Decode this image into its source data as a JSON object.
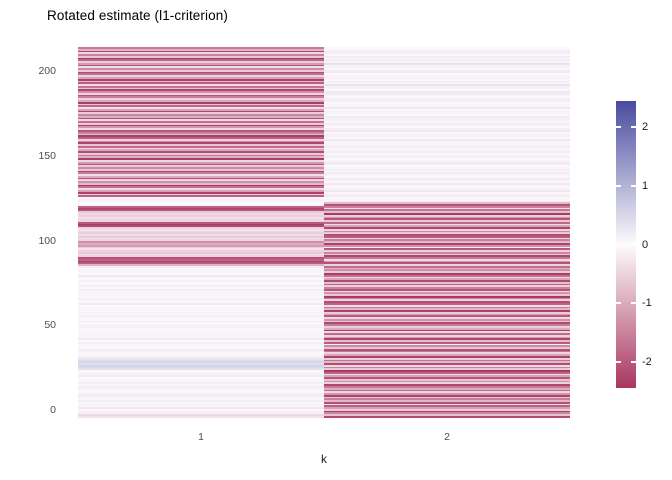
{
  "chart_data": {
    "type": "heatmap",
    "title": "Rotated estimate (l1-criterion)",
    "xlabel": "k",
    "ylabel": "",
    "categories": [
      "1",
      "2"
    ],
    "n_rows": 210,
    "ylim": [
      0,
      210
    ],
    "y_ticks": [
      0,
      50,
      100,
      150,
      200
    ],
    "legend_ticks": [
      2,
      1,
      0,
      -1,
      -2
    ],
    "legend_position": "right",
    "grid": false,
    "scale": {
      "low": "#A93660",
      "mid": "#FDFBFD",
      "high": "#494B9D",
      "domain": [
        -2.45,
        2.45
      ]
    },
    "series": [
      {
        "name": "1",
        "values": [
          -0.3,
          -0.45,
          -0.15,
          -0.2,
          -0.05,
          -0.25,
          -0.1,
          0.1,
          -0.05,
          0.15,
          0.05,
          -0.1,
          0.2,
          -0.15,
          0.05,
          -0.05,
          0.1,
          -0.2,
          0.05,
          0.15,
          -0.1,
          0.05,
          -0.05,
          0.2,
          -0.15,
          0.1,
          -0.05,
          0.35,
          0.5,
          0.55,
          0.4,
          0.5,
          0.45,
          0.3,
          -0.15,
          0.05,
          -0.05,
          0.1,
          -0.2,
          -0.05,
          0.05,
          -0.1,
          0.15,
          -0.05,
          -0.25,
          0.05,
          -0.1,
          -0.1,
          0.1,
          -0.05,
          0.05,
          -0.15,
          0.1,
          -0.05,
          -0.2,
          0.05,
          -0.1,
          0.15,
          -0.05,
          -0.15,
          0.05,
          -0.1,
          0.1,
          -0.05,
          -0.25,
          0.05,
          0.1,
          -0.15,
          -0.05,
          0.1,
          -0.1,
          0.05,
          -0.2,
          -0.05,
          0.15,
          -0.1,
          0.05,
          -0.15,
          -0.05,
          0.1,
          -0.25,
          0.05,
          -0.1,
          0.1,
          -0.05,
          -0.15,
          -0.9,
          -2.0,
          -2.3,
          -1.9,
          -2.1,
          -0.5,
          -0.4,
          -0.6,
          -0.5,
          -0.3,
          -0.55,
          -1.2,
          -1.0,
          -1.35,
          -0.5,
          -0.35,
          -0.6,
          -0.4,
          -0.55,
          -0.45,
          -0.3,
          -0.5,
          -2.2,
          -2.4,
          -2.0,
          -0.5,
          -0.4,
          -0.3,
          -0.55,
          -0.45,
          -0.6,
          -2.1,
          -2.3,
          -1.9,
          -0.1,
          -0.05,
          -0.12,
          -0.15,
          -0.05,
          -1.9,
          -0.6,
          -2.3,
          -1.1,
          -0.4,
          -1.7,
          -2.4,
          -0.8,
          -1.3,
          -0.5,
          -2.1,
          -1.0,
          -0.35,
          -1.6,
          -2.2,
          -0.7,
          -1.4,
          -0.55,
          -2.0,
          -1.2,
          -0.45,
          -2.35,
          -0.9,
          -1.6,
          -0.6,
          -2.15,
          -1.05,
          -0.4,
          -1.8,
          -0.65,
          -2.25,
          -1.35,
          -0.5,
          -1.9,
          -2.4,
          -0.75,
          -1.5,
          -2.05,
          -0.45,
          -1.25,
          -2.3,
          -0.6,
          -1.7,
          -0.4,
          -2.1,
          -0.95,
          -1.45,
          -0.55,
          -2.2,
          -1.15,
          -0.35,
          -1.85,
          -0.65,
          -2.35,
          -1.0,
          -0.5,
          -1.55,
          -2.1,
          -0.45,
          -1.3,
          -2.25,
          -0.7,
          -1.65,
          -0.4,
          -1.95,
          -0.85,
          -2.3,
          -1.1,
          -0.5,
          -1.75,
          -2.15,
          -0.6,
          -1.4,
          -0.35,
          -2.05,
          -1.2,
          -0.55,
          -1.85,
          -2.4,
          -0.65,
          -1.5,
          -0.45,
          -2.2,
          -0.9,
          -1.6
        ]
      },
      {
        "name": "2",
        "values": [
          -2.2,
          -0.7,
          -1.45,
          -2.35,
          -0.55,
          -1.15,
          -1.9,
          -0.4,
          -2.1,
          -0.85,
          -1.55,
          -0.6,
          -2.3,
          -1.25,
          -0.45,
          -1.75,
          -0.95,
          -1.6,
          -2.25,
          -0.5,
          -1.35,
          -0.7,
          -2.05,
          -1.1,
          -0.4,
          -1.85,
          -2.4,
          -0.6,
          -1.5,
          -0.35,
          -2.15,
          -0.8,
          -1.7,
          -0.55,
          -2.3,
          -1.05,
          -0.45,
          -1.65,
          -2.1,
          -0.65,
          -1.4,
          -0.12,
          -1.95,
          -0.75,
          -2.25,
          -1.2,
          -0.5,
          -1.8,
          -0.4,
          -2.35,
          -1.0,
          -0.55,
          -1.55,
          -2.2,
          -0.7,
          -1.3,
          -0.45,
          -2.0,
          -1.15,
          -0.6,
          -2.3,
          -0.85,
          -1.6,
          -0.35,
          -1.9,
          -2.15,
          -0.5,
          -1.45,
          -2.4,
          -0.65,
          -1.25,
          -0.4,
          -2.05,
          -1.5,
          -0.55,
          -1.85,
          -0.75,
          -2.2,
          -1.05,
          -0.45,
          -1.7,
          -2.35,
          -0.6,
          -1.35,
          -0.9,
          -1.75,
          -0.5,
          -2.1,
          -1.2,
          -0.4,
          -1.6,
          -2.25,
          -0.7,
          -1.45,
          -0.55,
          -2.0,
          -0.12,
          -1.3,
          -2.3,
          -0.8,
          -1.55,
          -0.45,
          -1.95,
          -2.15,
          -0.6,
          -1.4,
          -0.5,
          -2.25,
          -1.1,
          -0.4,
          -1.8,
          -0.65,
          -2.05,
          -1.25,
          -0.55,
          -2.4,
          -0.75,
          -1.65,
          -0.35,
          -1.5,
          -2.1,
          -0.8,
          0.15,
          -0.1,
          0.05,
          -0.2,
          0.1,
          -0.05,
          0.25,
          -0.15,
          0.05,
          0.1,
          -0.25,
          0.05,
          -0.15,
          0.2,
          -0.05,
          0.1,
          -0.2,
          0.05,
          0.15,
          -0.1,
          -0.05,
          0.2,
          -0.25,
          0.1,
          -0.05,
          0.15,
          -0.15,
          0.05,
          0.2,
          -0.1,
          0.05,
          -0.2,
          0.1,
          0.05,
          -0.1,
          0.25,
          -0.05,
          -0.15,
          0.1,
          0.05,
          -0.25,
          0.15,
          -0.05,
          0.1,
          -0.2,
          0.05,
          0.15,
          -0.1,
          0.2,
          -0.05,
          0.1,
          -0.15,
          0.05,
          0.25,
          -0.1,
          0.1,
          -0.05,
          -0.2,
          0.15,
          0.05,
          -0.1,
          0.2,
          -0.25,
          0.05,
          0.1,
          -0.15,
          0.3,
          -0.1,
          0.2,
          0.05,
          -0.15,
          0.1,
          -0.05,
          0.25,
          -0.2,
          0.05,
          0.15,
          -0.1,
          0.35,
          0.1,
          -0.2,
          0.05,
          0.2,
          -0.05,
          0.15,
          -0.25,
          0.1,
          0.05
        ]
      }
    ]
  }
}
